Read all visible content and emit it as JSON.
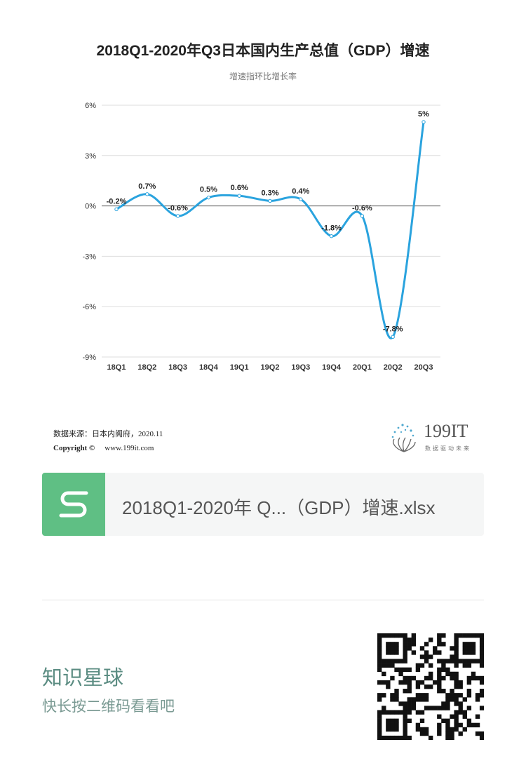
{
  "chart_data": {
    "type": "line",
    "title": "2018Q1-2020年Q3日本国内生产总值（GDP）增速",
    "subtitle": "增速指环比增长率",
    "categories": [
      "18Q1",
      "18Q2",
      "18Q3",
      "18Q4",
      "19Q1",
      "19Q2",
      "19Q3",
      "19Q4",
      "20Q1",
      "20Q2",
      "20Q3"
    ],
    "series": [
      {
        "values": [
          -0.2,
          0.7,
          -0.6,
          0.5,
          0.6,
          0.3,
          0.4,
          -1.8,
          -0.6,
          -7.8,
          5
        ]
      }
    ],
    "data_labels": [
      "-0.2%",
      "0.7%",
      "-0.6%",
      "0.5%",
      "0.6%",
      "0.3%",
      "0.4%",
      "-1.8%",
      "-0.6%",
      "-7.8%",
      "5%"
    ],
    "y_ticks": [
      "6%",
      "3%",
      "0%",
      "-3%",
      "-6%",
      "-9%"
    ],
    "ylim": [
      -9,
      6
    ],
    "grid": true,
    "smooth": true,
    "line_color": "#2aa3de"
  },
  "source": {
    "label": "数据来源：日本内阁府，2020.11",
    "copyright": "Copyright ©",
    "website": "www.199it.com"
  },
  "logo": {
    "name": "199IT",
    "tagline": "数据驱动未来"
  },
  "file_card": {
    "icon": "spreadsheet-s-icon",
    "filename": "2018Q1-2020年 Q...（GDP）增速.xlsx",
    "accent": "#5fbf84"
  },
  "footer": {
    "title": "知识星球",
    "subtitle": "快长按二维码看看吧"
  }
}
